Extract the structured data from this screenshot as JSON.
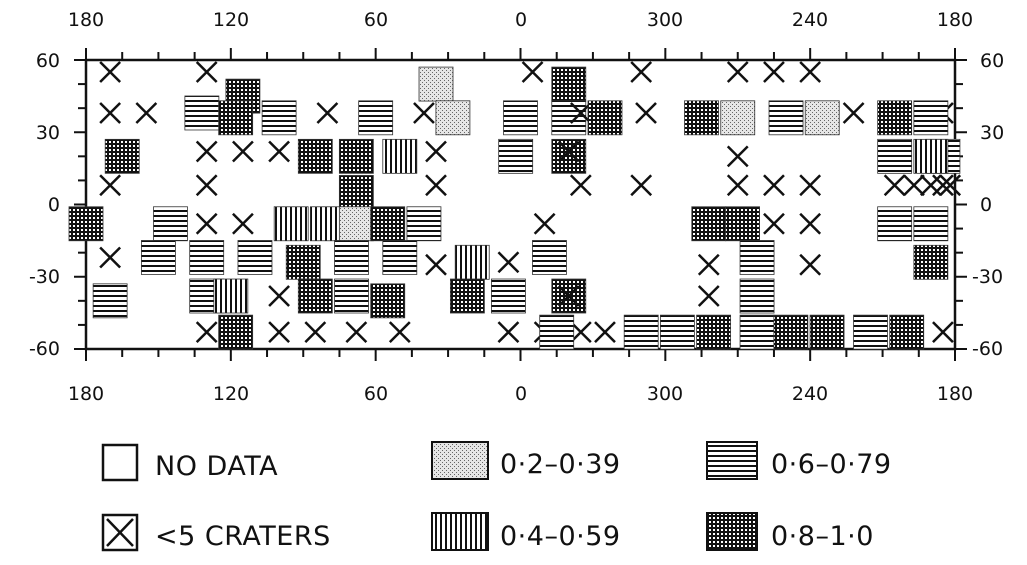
{
  "top_lon_labels": [
    "180",
    "120",
    "60",
    "0",
    "300",
    "240",
    "180"
  ],
  "bottom_lon_labels": [
    "180",
    "120",
    "60",
    "0",
    "300",
    "240",
    "180"
  ],
  "left_lat_labels": [
    "60",
    "30",
    "0",
    "-30",
    "-60"
  ],
  "right_lat_labels": [
    "60",
    "30",
    "0",
    "-30",
    "-60"
  ],
  "legend": [
    {
      "key": "nodata",
      "label": "NO DATA"
    },
    {
      "key": "few",
      "label": "<5 CRATERS"
    },
    {
      "key": "c1",
      "label": "0·2–0·39"
    },
    {
      "key": "c2",
      "label": "0·4–0·59"
    },
    {
      "key": "c3",
      "label": "0·6–0·79"
    },
    {
      "key": "c4",
      "label": "0·8–1·0"
    }
  ],
  "cells": [
    {
      "lon": 170,
      "lat": 55,
      "cls": "few"
    },
    {
      "lon": 130,
      "lat": 55,
      "cls": "few"
    },
    {
      "lon": 115,
      "lat": 45,
      "cls": "c4"
    },
    {
      "lon": 35,
      "lat": 50,
      "cls": "c1"
    },
    {
      "lon": -5,
      "lat": 55,
      "cls": "few"
    },
    {
      "lon": -20,
      "lat": 50,
      "cls": "c4"
    },
    {
      "lon": 310,
      "lat": 55,
      "cls": "few"
    },
    {
      "lon": 270,
      "lat": 55,
      "cls": "few"
    },
    {
      "lon": 255,
      "lat": 55,
      "cls": "few"
    },
    {
      "lon": 240,
      "lat": 55,
      "cls": "few"
    },
    {
      "lon": 185,
      "lat": 38,
      "cls": "few"
    },
    {
      "lon": 170,
      "lat": 38,
      "cls": "few"
    },
    {
      "lon": 155,
      "lat": 38,
      "cls": "few"
    },
    {
      "lon": 132,
      "lat": 38,
      "cls": "c3"
    },
    {
      "lon": 118,
      "lat": 36,
      "cls": "c4"
    },
    {
      "lon": 100,
      "lat": 36,
      "cls": "c3"
    },
    {
      "lon": 80,
      "lat": 38,
      "cls": "few"
    },
    {
      "lon": 60,
      "lat": 36,
      "cls": "c3"
    },
    {
      "lon": 40,
      "lat": 38,
      "cls": "few"
    },
    {
      "lon": 28,
      "lat": 36,
      "cls": "c1"
    },
    {
      "lon": 0,
      "lat": 36,
      "cls": "c3"
    },
    {
      "lon": -20,
      "lat": 36,
      "cls": "c3"
    },
    {
      "lon": 335,
      "lat": 38,
      "cls": "few"
    },
    {
      "lon": 325,
      "lat": 36,
      "cls": "c4"
    },
    {
      "lon": 308,
      "lat": 38,
      "cls": "few"
    },
    {
      "lon": 285,
      "lat": 36,
      "cls": "c4"
    },
    {
      "lon": 270,
      "lat": 36,
      "cls": "c1"
    },
    {
      "lon": 250,
      "lat": 36,
      "cls": "c3"
    },
    {
      "lon": 235,
      "lat": 36,
      "cls": "c1"
    },
    {
      "lon": 222,
      "lat": 38,
      "cls": "few"
    },
    {
      "lon": 205,
      "lat": 36,
      "cls": "c4"
    },
    {
      "lon": 190,
      "lat": 36,
      "cls": "c3"
    },
    {
      "lon": 185,
      "lat": 20,
      "cls": "c3"
    },
    {
      "lon": 165,
      "lat": 20,
      "cls": "c4"
    },
    {
      "lon": 130,
      "lat": 22,
      "cls": "few"
    },
    {
      "lon": 115,
      "lat": 22,
      "cls": "few"
    },
    {
      "lon": 100,
      "lat": 22,
      "cls": "few"
    },
    {
      "lon": 85,
      "lat": 20,
      "cls": "c4"
    },
    {
      "lon": 68,
      "lat": 20,
      "cls": "c4"
    },
    {
      "lon": 50,
      "lat": 20,
      "cls": "c2"
    },
    {
      "lon": 35,
      "lat": 22,
      "cls": "few"
    },
    {
      "lon": 2,
      "lat": 20,
      "cls": "c3"
    },
    {
      "lon": -20,
      "lat": 20,
      "cls": "c4"
    },
    {
      "lon": 340,
      "lat": 22,
      "cls": "few"
    },
    {
      "lon": 270,
      "lat": 20,
      "cls": "few"
    },
    {
      "lon": 205,
      "lat": 20,
      "cls": "c3"
    },
    {
      "lon": 190,
      "lat": 20,
      "cls": "c2"
    },
    {
      "lon": 182,
      "lat": 8,
      "cls": "few"
    },
    {
      "lon": 170,
      "lat": 8,
      "cls": "few"
    },
    {
      "lon": 130,
      "lat": 8,
      "cls": "few"
    },
    {
      "lon": 68,
      "lat": 5,
      "cls": "c4"
    },
    {
      "lon": 35,
      "lat": 8,
      "cls": "few"
    },
    {
      "lon": -25,
      "lat": 8,
      "cls": "few"
    },
    {
      "lon": 310,
      "lat": 8,
      "cls": "few"
    },
    {
      "lon": 270,
      "lat": 8,
      "cls": "few"
    },
    {
      "lon": 255,
      "lat": 8,
      "cls": "few"
    },
    {
      "lon": 240,
      "lat": 8,
      "cls": "few"
    },
    {
      "lon": 205,
      "lat": 8,
      "cls": "few"
    },
    {
      "lon": 190,
      "lat": 8,
      "cls": "few"
    },
    {
      "lon": 180,
      "lat": -8,
      "cls": "c4"
    },
    {
      "lon": 145,
      "lat": -8,
      "cls": "c3"
    },
    {
      "lon": 130,
      "lat": -8,
      "cls": "few"
    },
    {
      "lon": 115,
      "lat": -8,
      "cls": "few"
    },
    {
      "lon": 95,
      "lat": -8,
      "cls": "c2"
    },
    {
      "lon": 80,
      "lat": -8,
      "cls": "c2"
    },
    {
      "lon": 68,
      "lat": -8,
      "cls": "c1"
    },
    {
      "lon": 55,
      "lat": -8,
      "cls": "c4"
    },
    {
      "lon": 40,
      "lat": -8,
      "cls": "c3"
    },
    {
      "lon": -10,
      "lat": -8,
      "cls": "few"
    },
    {
      "lon": 282,
      "lat": -8,
      "cls": "c4"
    },
    {
      "lon": 268,
      "lat": -8,
      "cls": "c4"
    },
    {
      "lon": 255,
      "lat": -8,
      "cls": "few"
    },
    {
      "lon": 240,
      "lat": -8,
      "cls": "few"
    },
    {
      "lon": 205,
      "lat": -8,
      "cls": "c3"
    },
    {
      "lon": 170,
      "lat": -22,
      "cls": "few"
    },
    {
      "lon": 150,
      "lat": -22,
      "cls": "c3"
    },
    {
      "lon": 130,
      "lat": -22,
      "cls": "c3"
    },
    {
      "lon": 110,
      "lat": -22,
      "cls": "c3"
    },
    {
      "lon": 90,
      "lat": -24,
      "cls": "c4"
    },
    {
      "lon": 70,
      "lat": -22,
      "cls": "c3"
    },
    {
      "lon": 50,
      "lat": -22,
      "cls": "c3"
    },
    {
      "lon": 35,
      "lat": -25,
      "cls": "few"
    },
    {
      "lon": 20,
      "lat": -24,
      "cls": "c2"
    },
    {
      "lon": 5,
      "lat": -24,
      "cls": "few"
    },
    {
      "lon": -12,
      "lat": -22,
      "cls": "c3"
    },
    {
      "lon": 282,
      "lat": -25,
      "cls": "few"
    },
    {
      "lon": 262,
      "lat": -22,
      "cls": "c3"
    },
    {
      "lon": 240,
      "lat": -25,
      "cls": "few"
    },
    {
      "lon": 190,
      "lat": -24,
      "cls": "c4"
    },
    {
      "lon": 170,
      "lat": -40,
      "cls": "c3"
    },
    {
      "lon": 130,
      "lat": -38,
      "cls": "c3"
    },
    {
      "lon": 120,
      "lat": -38,
      "cls": "c2"
    },
    {
      "lon": 100,
      "lat": -38,
      "cls": "few"
    },
    {
      "lon": 85,
      "lat": -38,
      "cls": "c4"
    },
    {
      "lon": 70,
      "lat": -38,
      "cls": "c3"
    },
    {
      "lon": 55,
      "lat": -40,
      "cls": "c4"
    },
    {
      "lon": 22,
      "lat": -38,
      "cls": "c4"
    },
    {
      "lon": 5,
      "lat": -38,
      "cls": "c3"
    },
    {
      "lon": -20,
      "lat": -38,
      "cls": "c4"
    },
    {
      "lon": 340,
      "lat": -38,
      "cls": "few"
    },
    {
      "lon": 282,
      "lat": -38,
      "cls": "few"
    },
    {
      "lon": 262,
      "lat": -38,
      "cls": "c3"
    },
    {
      "lon": 130,
      "lat": -53,
      "cls": "few"
    },
    {
      "lon": 118,
      "lat": -53,
      "cls": "c4"
    },
    {
      "lon": 100,
      "lat": -53,
      "cls": "few"
    },
    {
      "lon": 85,
      "lat": -53,
      "cls": "few"
    },
    {
      "lon": 68,
      "lat": -53,
      "cls": "few"
    },
    {
      "lon": 50,
      "lat": -53,
      "cls": "few"
    },
    {
      "lon": 5,
      "lat": -53,
      "cls": "few"
    },
    {
      "lon": -10,
      "lat": -53,
      "cls": "few"
    },
    {
      "lon": -25,
      "lat": -53,
      "cls": "few"
    },
    {
      "lon": 345,
      "lat": -53,
      "cls": "c3"
    },
    {
      "lon": 325,
      "lat": -53,
      "cls": "few"
    },
    {
      "lon": 310,
      "lat": -53,
      "cls": "c3"
    },
    {
      "lon": 295,
      "lat": -53,
      "cls": "c3"
    },
    {
      "lon": 280,
      "lat": -53,
      "cls": "c4"
    },
    {
      "lon": 262,
      "lat": -53,
      "cls": "c3"
    },
    {
      "lon": 248,
      "lat": -53,
      "cls": "c4"
    },
    {
      "lon": 233,
      "lat": -53,
      "cls": "c4"
    },
    {
      "lon": 215,
      "lat": -53,
      "cls": "c3"
    },
    {
      "lon": 200,
      "lat": -53,
      "cls": "c4"
    },
    {
      "lon": 185,
      "lat": -53,
      "cls": "few"
    },
    {
      "lon": 185,
      "lat": 8,
      "cls": "few"
    },
    {
      "lon": 197,
      "lat": 8,
      "cls": "few"
    },
    {
      "lon": 190,
      "lat": -8,
      "cls": "c3"
    }
  ]
}
